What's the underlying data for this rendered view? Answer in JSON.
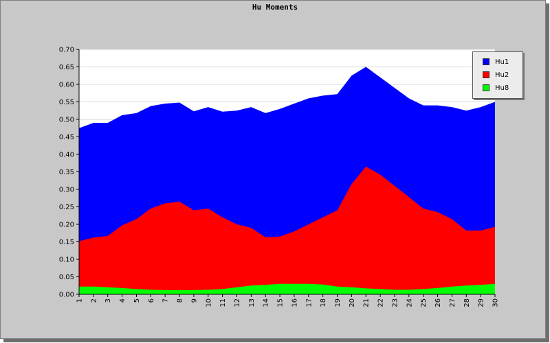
{
  "chart_data": {
    "type": "area",
    "title": "Hu Moments",
    "xlabel": "",
    "ylabel": "",
    "x": [
      1,
      2,
      3,
      4,
      5,
      6,
      7,
      8,
      9,
      10,
      11,
      12,
      13,
      14,
      15,
      16,
      17,
      18,
      19,
      20,
      21,
      22,
      23,
      24,
      25,
      26,
      27,
      28,
      29,
      30
    ],
    "ylim": [
      0,
      0.7
    ],
    "yticks": [
      "0.00",
      "0.05",
      "0.10",
      "0.15",
      "0.20",
      "0.25",
      "0.30",
      "0.35",
      "0.40",
      "0.45",
      "0.50",
      "0.55",
      "0.60",
      "0.65",
      "0.70"
    ],
    "grid": true,
    "legend_position": "top-right",
    "series": [
      {
        "name": "Hu1",
        "color": "#0000ff",
        "values": [
          0.475,
          0.49,
          0.49,
          0.512,
          0.518,
          0.538,
          0.545,
          0.548,
          0.523,
          0.535,
          0.522,
          0.525,
          0.535,
          0.518,
          0.53,
          0.545,
          0.56,
          0.568,
          0.572,
          0.625,
          0.65,
          0.62,
          0.59,
          0.56,
          0.54,
          0.54,
          0.535,
          0.525,
          0.535,
          0.55
        ]
      },
      {
        "name": "Hu2",
        "color": "#ff0000",
        "values": [
          0.152,
          0.162,
          0.167,
          0.197,
          0.215,
          0.245,
          0.26,
          0.265,
          0.24,
          0.245,
          0.22,
          0.2,
          0.19,
          0.163,
          0.165,
          0.18,
          0.2,
          0.22,
          0.24,
          0.315,
          0.365,
          0.342,
          0.31,
          0.278,
          0.245,
          0.235,
          0.215,
          0.182,
          0.182,
          0.193
        ]
      },
      {
        "name": "Hu8",
        "color": "#00ff00",
        "values": [
          0.022,
          0.022,
          0.02,
          0.018,
          0.015,
          0.013,
          0.012,
          0.012,
          0.012,
          0.013,
          0.015,
          0.02,
          0.025,
          0.027,
          0.03,
          0.03,
          0.03,
          0.028,
          0.022,
          0.02,
          0.017,
          0.015,
          0.013,
          0.013,
          0.015,
          0.018,
          0.022,
          0.025,
          0.027,
          0.03
        ]
      }
    ]
  }
}
